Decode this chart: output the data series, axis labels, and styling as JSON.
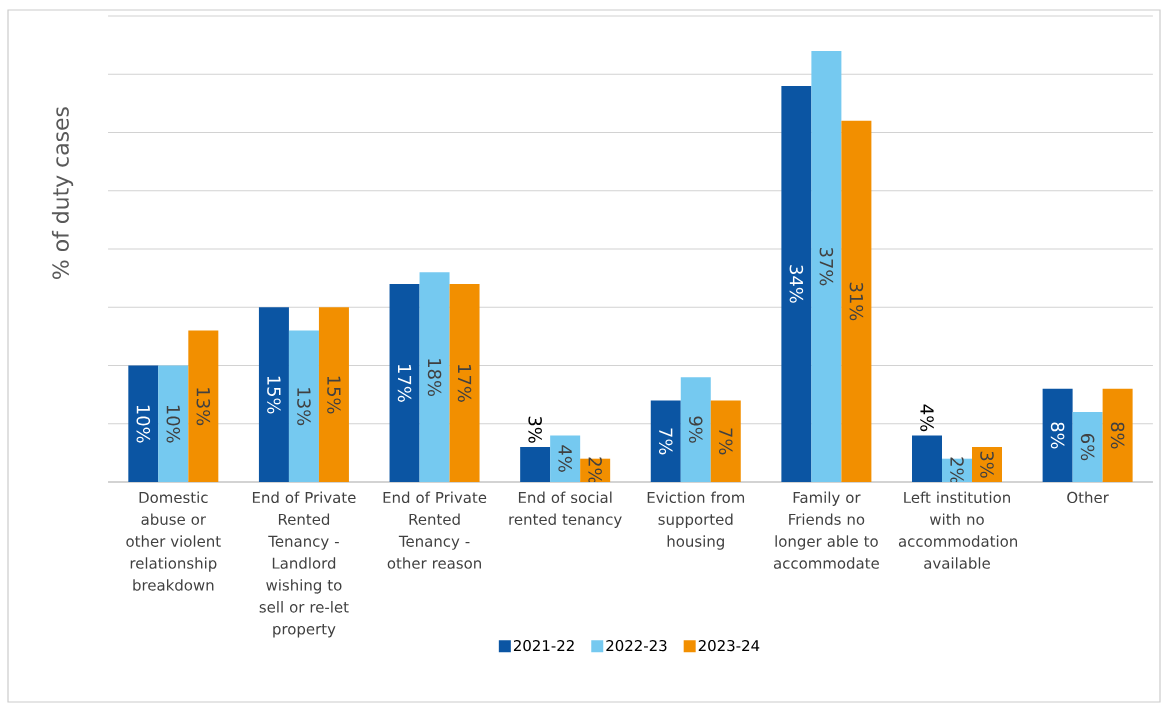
{
  "chart_data": {
    "type": "bar",
    "ylabel": "% of duty cases",
    "categories": [
      "Domestic abuse or other violent relationship breakdown",
      "End of Private Rented Tenancy - Landlord wishing to sell or re-let property",
      "End of Private Rented Tenancy - other reason",
      "End of social rented tenancy",
      "Eviction from supported housing",
      "Family or Friends no longer able to accommodate",
      "Left institution with no accommodation available",
      "Other"
    ],
    "series": [
      {
        "name": "2021-22",
        "color": "#0b55a3",
        "values": [
          10,
          15,
          17,
          3,
          7,
          34,
          4,
          8
        ],
        "value_labels": [
          "10%",
          "15%",
          "17%",
          "3%",
          "7%",
          "34%",
          "4%",
          "8%"
        ]
      },
      {
        "name": "2022-23",
        "color": "#75c9f0",
        "values": [
          10,
          13,
          18,
          4,
          9,
          37,
          2,
          6
        ],
        "value_labels": [
          "10%",
          "13%",
          "18%",
          "4%",
          "9%",
          "37%",
          "2%",
          "6%"
        ]
      },
      {
        "name": "2023-24",
        "color": "#f28f00",
        "values": [
          13,
          15,
          17,
          2,
          7,
          31,
          3,
          8
        ],
        "value_labels": [
          "13%",
          "15%",
          "17%",
          "2%",
          "7%",
          "31%",
          "3%",
          "8%"
        ]
      }
    ],
    "ylim": [
      0,
      40
    ],
    "yticks": [
      {
        "value": 0,
        "label": null
      },
      {
        "value": 5,
        "label": null
      },
      {
        "value": 10,
        "label": null
      },
      {
        "value": 15,
        "label": null
      },
      {
        "value": 20,
        "label": null
      },
      {
        "value": 25,
        "label": null
      },
      {
        "value": 30,
        "label": null
      },
      {
        "value": 35,
        "label": null
      },
      {
        "value": 40,
        "label": null
      }
    ],
    "tick_labels": "x",
    "grid": "y",
    "legend": "bottom"
  }
}
